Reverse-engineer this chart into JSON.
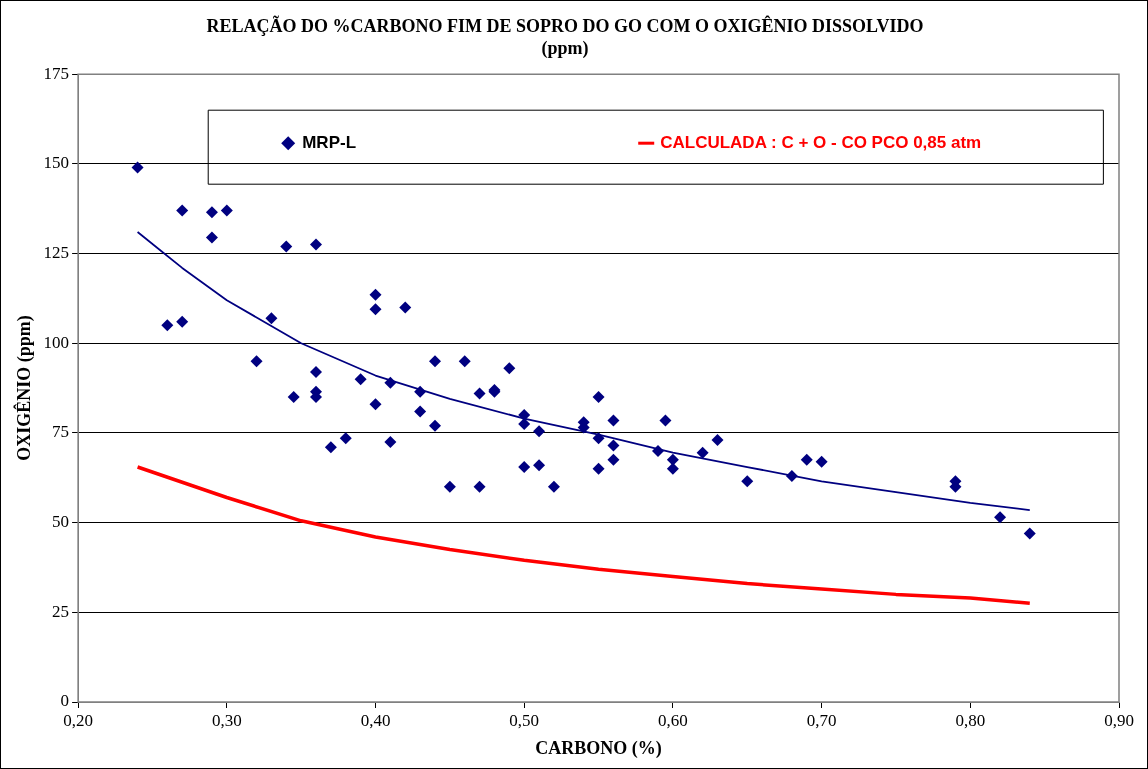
{
  "chart_data": {
    "type": "scatter",
    "title": "RELAÇÃO DO %CARBONO FIM DE SOPRO DO GO COM O OXIGÊNIO DISSOLVIDO\n(ppm)",
    "xlabel": "CARBONO (%)",
    "ylabel": "OXIGÊNIO (ppm)",
    "xlim": [
      0.2,
      0.9
    ],
    "xticks": [
      {
        "value": 0.2,
        "label": "0,20"
      },
      {
        "value": 0.3,
        "label": "0,30"
      },
      {
        "value": 0.4,
        "label": "0,40"
      },
      {
        "value": 0.5,
        "label": "0,50"
      },
      {
        "value": 0.6,
        "label": "0,60"
      },
      {
        "value": 0.7,
        "label": "0,70"
      },
      {
        "value": 0.8,
        "label": "0,80"
      },
      {
        "value": 0.9,
        "label": "0,90"
      }
    ],
    "ylim": [
      0,
      175
    ],
    "yticks": [
      0,
      25,
      50,
      75,
      100,
      125,
      150,
      175
    ],
    "grid": "y",
    "legend": "top",
    "series": [
      {
        "name": "MRP-L",
        "marker": "diamond",
        "color": "#000080",
        "x": [
          0.24,
          0.26,
          0.27,
          0.27,
          0.29,
          0.29,
          0.3,
          0.32,
          0.33,
          0.34,
          0.345,
          0.36,
          0.36,
          0.36,
          0.36,
          0.37,
          0.38,
          0.39,
          0.4,
          0.4,
          0.4,
          0.41,
          0.41,
          0.42,
          0.43,
          0.43,
          0.44,
          0.44,
          0.45,
          0.46,
          0.47,
          0.47,
          0.48,
          0.48,
          0.49,
          0.5,
          0.5,
          0.5,
          0.51,
          0.51,
          0.52,
          0.54,
          0.54,
          0.55,
          0.55,
          0.55,
          0.56,
          0.56,
          0.56,
          0.59,
          0.595,
          0.6,
          0.6,
          0.62,
          0.63,
          0.65,
          0.68,
          0.69,
          0.7,
          0.79,
          0.79,
          0.82,
          0.84
        ],
        "values": [
          149,
          105,
          106,
          137,
          136.5,
          129.5,
          137,
          95,
          107,
          127,
          85,
          127.5,
          92,
          86.5,
          85,
          71,
          73.5,
          90,
          113.5,
          109.5,
          83,
          89,
          72.5,
          110,
          86.5,
          81,
          95,
          77,
          60,
          95,
          86,
          60,
          87,
          86.5,
          93,
          80,
          77.5,
          65.5,
          75.5,
          66,
          60,
          78,
          76.5,
          85,
          73.5,
          65,
          78.5,
          71.5,
          67.5,
          70,
          78.5,
          67.5,
          65,
          69.5,
          73,
          61.5,
          63,
          67.5,
          67,
          61.5,
          60,
          51.5,
          47
        ]
      },
      {
        "type": "line",
        "marker": "none",
        "color": "#000080",
        "x": [
          0.24,
          0.27,
          0.3,
          0.35,
          0.4,
          0.45,
          0.5,
          0.55,
          0.6,
          0.65,
          0.7,
          0.75,
          0.8,
          0.84
        ],
        "values": [
          131,
          121,
          112,
          100,
          91,
          84.5,
          79,
          74.5,
          69.5,
          65.5,
          61.5,
          58.5,
          55.5,
          53.5
        ]
      },
      {
        "name": "CALCULADA : C + O - CO PCO 0,85 atm",
        "type": "line",
        "marker": "none",
        "color": "#ff0000",
        "x": [
          0.24,
          0.3,
          0.35,
          0.4,
          0.45,
          0.5,
          0.55,
          0.6,
          0.65,
          0.7,
          0.75,
          0.8,
          0.84
        ],
        "values": [
          65.5,
          57,
          50.5,
          46,
          42.5,
          39.5,
          37,
          35,
          33,
          31.5,
          30,
          29,
          27.5
        ]
      }
    ]
  }
}
